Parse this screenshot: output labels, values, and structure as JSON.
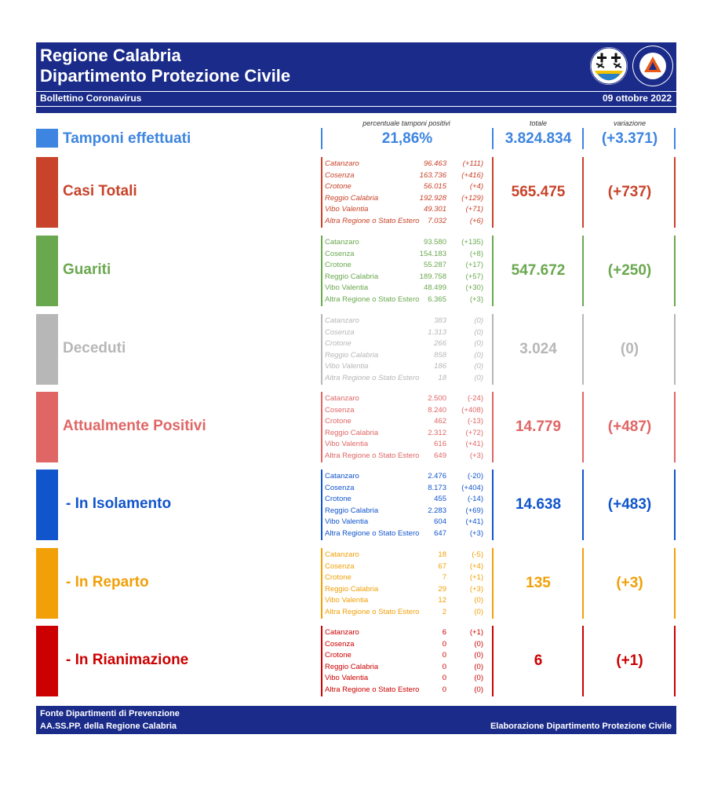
{
  "header": {
    "title_line1": "Regione Calabria",
    "title_line2": "Dipartimento Protezione Civile",
    "bulletin": "Bollettino Coronavirus",
    "date": "09 ottobre 2022",
    "logo2_text": "PROTEZIONE CIVILE"
  },
  "column_headers": {
    "positivity": "percentuale tamponi positivi",
    "total": "totale",
    "variation": "variazione"
  },
  "colors": {
    "brand": "#1a2b8a",
    "tamponi": "#3d85e0",
    "casi": "#c8432a",
    "guariti": "#6aa84f",
    "deceduti": "#b7b7b7",
    "positivi": "#e06666",
    "isolamento": "#1155cc",
    "reparto": "#f1a008",
    "rianimazione": "#cc0000"
  },
  "tamponi": {
    "label": "Tamponi effettuati",
    "positivity": "21,86%",
    "total": "3.824.834",
    "variation": "(+3.371)"
  },
  "sections": [
    {
      "label": "Casi Totali",
      "total": "565.475",
      "variation": "(+737)",
      "rows": [
        {
          "province": "Catanzaro",
          "value": "96.463",
          "delta": "(+111)"
        },
        {
          "province": "Cosenza",
          "value": "163.736",
          "delta": "(+416)"
        },
        {
          "province": "Crotone",
          "value": "56.015",
          "delta": "(+4)"
        },
        {
          "province": "Reggio Calabria",
          "value": "192.928",
          "delta": "(+129)"
        },
        {
          "province": "Vibo Valentia",
          "value": "49.301",
          "delta": "(+71)"
        },
        {
          "province": "Altra Regione o Stato Estero",
          "value": "7.032",
          "delta": "(+6)"
        }
      ]
    },
    {
      "label": "Guariti",
      "total": "547.672",
      "variation": "(+250)",
      "rows": [
        {
          "province": "Catanzaro",
          "value": "93.580",
          "delta": "(+135)"
        },
        {
          "province": "Cosenza",
          "value": "154.183",
          "delta": "(+8)"
        },
        {
          "province": "Crotone",
          "value": "55.287",
          "delta": "(+17)"
        },
        {
          "province": "Reggio Calabria",
          "value": "189.758",
          "delta": "(+57)"
        },
        {
          "province": "Vibo Valentia",
          "value": "48.499",
          "delta": "(+30)"
        },
        {
          "province": "Altra Regione o Stato Estero",
          "value": "6.365",
          "delta": "(+3)"
        }
      ]
    },
    {
      "label": "Deceduti",
      "total": "3.024",
      "variation": "(0)",
      "rows": [
        {
          "province": "Catanzaro",
          "value": "383",
          "delta": "(0)"
        },
        {
          "province": "Cosenza",
          "value": "1.313",
          "delta": "(0)"
        },
        {
          "province": "Crotone",
          "value": "266",
          "delta": "(0)"
        },
        {
          "province": "Reggio Calabria",
          "value": "858",
          "delta": "(0)"
        },
        {
          "province": "Vibo Valentia",
          "value": "186",
          "delta": "(0)"
        },
        {
          "province": "Altra Regione o Stato Estero",
          "value": "18",
          "delta": "(0)"
        }
      ]
    },
    {
      "label": "Attualmente Positivi",
      "total": "14.779",
      "variation": "(+487)",
      "rows": [
        {
          "province": "Catanzaro",
          "value": "2.500",
          "delta": "(-24)"
        },
        {
          "province": "Cosenza",
          "value": "8.240",
          "delta": "(+408)"
        },
        {
          "province": "Crotone",
          "value": "462",
          "delta": "(-13)"
        },
        {
          "province": "Reggio Calabria",
          "value": "2.312",
          "delta": "(+72)"
        },
        {
          "province": "Vibo Valentia",
          "value": "616",
          "delta": "(+41)"
        },
        {
          "province": "Altra Regione o Stato Estero",
          "value": "649",
          "delta": "(+3)"
        }
      ]
    },
    {
      "label": "- In Isolamento",
      "total": "14.638",
      "variation": "(+483)",
      "rows": [
        {
          "province": "Catanzaro",
          "value": "2.476",
          "delta": "(-20)"
        },
        {
          "province": "Cosenza",
          "value": "8.173",
          "delta": "(+404)"
        },
        {
          "province": "Crotone",
          "value": "455",
          "delta": "(-14)"
        },
        {
          "province": "Reggio Calabria",
          "value": "2.283",
          "delta": "(+69)"
        },
        {
          "province": "Vibo Valentia",
          "value": "604",
          "delta": "(+41)"
        },
        {
          "province": "Altra Regione o Stato Estero",
          "value": "647",
          "delta": "(+3)"
        }
      ]
    },
    {
      "label": "- In Reparto",
      "total": "135",
      "variation": "(+3)",
      "rows": [
        {
          "province": "Catanzaro",
          "value": "18",
          "delta": "(-5)"
        },
        {
          "province": "Cosenza",
          "value": "67",
          "delta": "(+4)"
        },
        {
          "province": "Crotone",
          "value": "7",
          "delta": "(+1)"
        },
        {
          "province": "Reggio Calabria",
          "value": "29",
          "delta": "(+3)"
        },
        {
          "province": "Vibo Valentia",
          "value": "12",
          "delta": "(0)"
        },
        {
          "province": "Altra Regione o Stato Estero",
          "value": "2",
          "delta": "(0)"
        }
      ]
    },
    {
      "label": "- In Rianimazione",
      "total": "6",
      "variation": "(+1)",
      "rows": [
        {
          "province": "Catanzaro",
          "value": "6",
          "delta": "(+1)"
        },
        {
          "province": "Cosenza",
          "value": "0",
          "delta": "(0)"
        },
        {
          "province": "Crotone",
          "value": "0",
          "delta": "(0)"
        },
        {
          "province": "Reggio Calabria",
          "value": "0",
          "delta": "(0)"
        },
        {
          "province": "Vibo Valentia",
          "value": "0",
          "delta": "(0)"
        },
        {
          "province": "Altra Regione o Stato Estero",
          "value": "0",
          "delta": "(0)"
        }
      ]
    }
  ],
  "footer": {
    "source_line1": "Fonte Dipartimenti di Prevenzione",
    "source_line2": "AA.SS.PP.  della Regione Calabria",
    "credit": "Elaborazione Dipartimento Protezione Civile"
  }
}
